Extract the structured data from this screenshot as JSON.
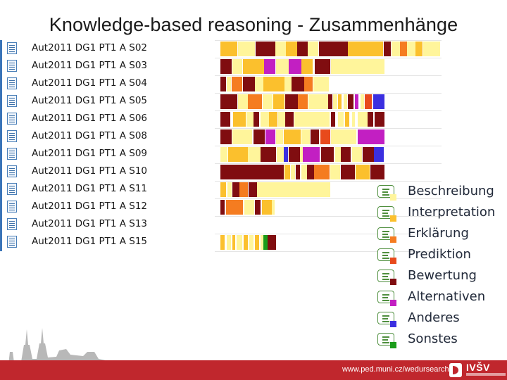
{
  "title": "Knowledge-based reasoning - Zusammenhänge",
  "documents": [
    "Aut2011 DG1 PT1 A S02",
    "Aut2011 DG1 PT1 A S03",
    "Aut2011 DG1 PT1 A S04",
    "Aut2011 DG1 PT1 A S05",
    "Aut2011 DG1 PT1 A S06",
    "Aut2011 DG1 PT1 A S08",
    "Aut2011 DG1 PT1 A S09",
    "Aut2011 DG1 PT1 A S10",
    "Aut2011 DG1 PT1 A S11",
    "Aut2011 DG1 PT1 A S12",
    "Aut2011 DG1 PT1 A S13",
    "Aut2011 DG1 PT1 A S15"
  ],
  "legend": [
    {
      "label": "Beschreibung",
      "color": "#fff59b",
      "icon": "code-memo-icon"
    },
    {
      "label": "Interpretation",
      "color": "#fbc02d",
      "icon": "code-memo-icon"
    },
    {
      "label": "Erklärung",
      "color": "#f57c20",
      "icon": "code-memo-icon"
    },
    {
      "label": "Prediktion",
      "color": "#e84a1c",
      "icon": "code-memo-icon"
    },
    {
      "label": "Bewertung",
      "color": "#800d10",
      "icon": "code-memo-icon"
    },
    {
      "label": "Alternativen",
      "color": "#c21fc2",
      "icon": "code-memo-icon"
    },
    {
      "label": "Anderes",
      "color": "#3b2fe0",
      "icon": "code-memo-icon"
    },
    {
      "label": "Sonstes",
      "color": "#1a9c1a",
      "icon": "code-memo-icon"
    }
  ],
  "footer": {
    "url": "www.ped.muni.cz/wedursearch",
    "logo_text": "IVŠV"
  }
}
